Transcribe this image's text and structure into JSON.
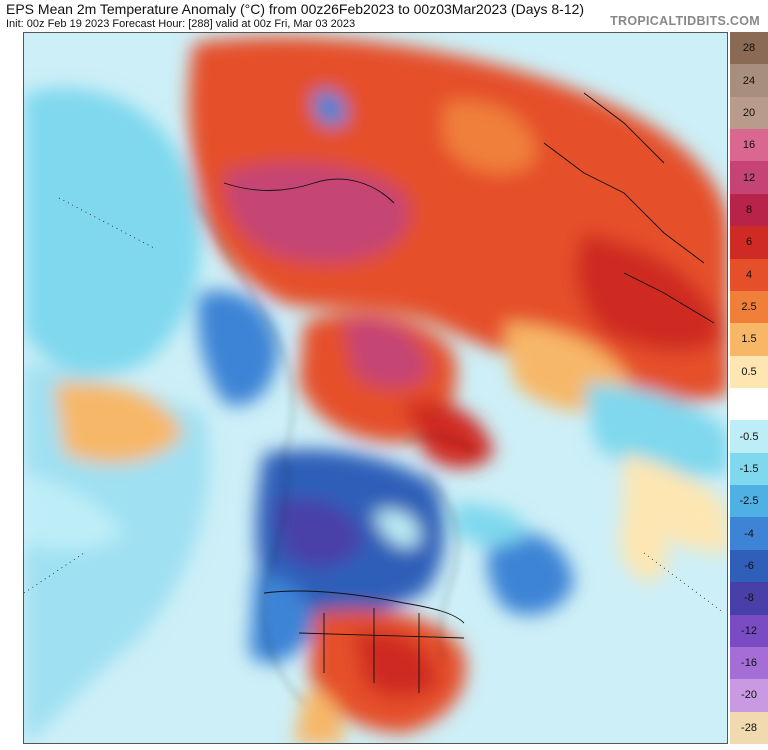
{
  "header": {
    "title": "EPS Mean 2m Temperature Anomaly (°C) from 00z26Feb2023 to 00z03Mar2023 (Days 8-12)",
    "subtitle": "Init: 00z Feb 19 2023   Forecast Hour: [288]   valid at 00z Fri, Mar 03 2023",
    "credit": "TROPICALTIDBITS.COM"
  },
  "legend": {
    "bins": [
      {
        "label": "28",
        "color": "#8b6a55"
      },
      {
        "label": "24",
        "color": "#a88f7d"
      },
      {
        "label": "20",
        "color": "#b99b8c"
      },
      {
        "label": "16",
        "color": "#d9678f"
      },
      {
        "label": "12",
        "color": "#c54475"
      },
      {
        "label": "8",
        "color": "#b8234a"
      },
      {
        "label": "6",
        "color": "#cf2a24"
      },
      {
        "label": "4",
        "color": "#e5502a"
      },
      {
        "label": "2.5",
        "color": "#f07f3a"
      },
      {
        "label": "1.5",
        "color": "#f7b767"
      },
      {
        "label": "0.5",
        "color": "#fde6b2"
      },
      {
        "label": "",
        "color": "#ffffff"
      },
      {
        "label": "-0.5",
        "color": "#bdeef7"
      },
      {
        "label": "-1.5",
        "color": "#7fd8ee"
      },
      {
        "label": "-2.5",
        "color": "#4fb0e4"
      },
      {
        "label": "-4",
        "color": "#3d84d6"
      },
      {
        "label": "-6",
        "color": "#2f5fb8"
      },
      {
        "label": "-8",
        "color": "#4840a8"
      },
      {
        "label": "-12",
        "color": "#7a4cc4"
      },
      {
        "label": "-16",
        "color": "#a46ed6"
      },
      {
        "label": "-20",
        "color": "#c99ae2"
      },
      {
        "label": "-28",
        "color": "#f1d9b0"
      }
    ]
  },
  "map_regions": [
    {
      "name": "siberia-warm",
      "color": "#e5502a"
    },
    {
      "name": "siberia-core",
      "color": "#c54475"
    },
    {
      "name": "arctic-warm",
      "color": "#d9678f"
    },
    {
      "name": "canada-cold",
      "color": "#2f5fb8"
    },
    {
      "name": "us-southeast-warm",
      "color": "#cf2a24"
    },
    {
      "name": "pacific-cool",
      "color": "#7fd8ee"
    },
    {
      "name": "atlantic-cold-eddy",
      "color": "#3d84d6"
    },
    {
      "name": "north-africa-warm",
      "color": "#f07f3a"
    }
  ]
}
